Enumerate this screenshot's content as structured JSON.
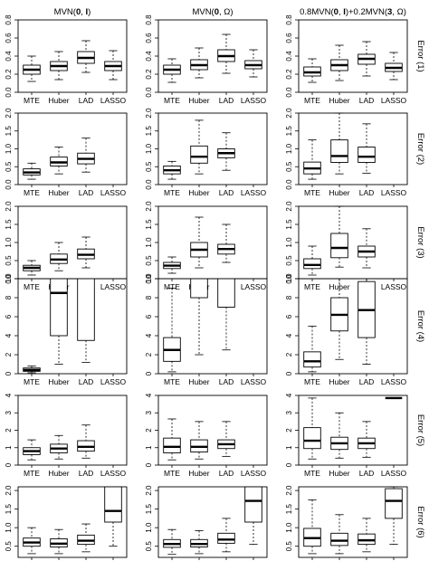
{
  "categories": [
    "MTE",
    "Huber",
    "LAD",
    "LASSO"
  ],
  "column_titles": [
    {
      "parts": [
        {
          "t": "MVN("
        },
        {
          "t": "0",
          "b": true
        },
        {
          "t": ", "
        },
        {
          "t": "I",
          "b": true
        },
        {
          "t": ")"
        }
      ]
    },
    {
      "parts": [
        {
          "t": "MVN("
        },
        {
          "t": "0",
          "b": true
        },
        {
          "t": ", Ω)"
        }
      ]
    },
    {
      "parts": [
        {
          "t": "0.8MVN("
        },
        {
          "t": "0",
          "b": true
        },
        {
          "t": ", "
        },
        {
          "t": "I",
          "b": true
        },
        {
          "t": ")+0.2MVN("
        },
        {
          "t": "3",
          "b": true
        },
        {
          "t": ", Ω)"
        }
      ]
    }
  ],
  "row_labels": [
    "Error (1)",
    "Error (2)",
    "Error (3)",
    "Error (4)",
    "Error (5)",
    "Error (6)"
  ],
  "chart_data": {
    "type": "boxplot",
    "rows": [
      {
        "label": "Error (1)",
        "ylim": [
          0,
          0.8
        ],
        "yticks": [
          "0.0",
          "0.2",
          "0.4",
          "0.6",
          "0.8"
        ],
        "ytick_values": [
          0,
          0.2,
          0.4,
          0.6,
          0.8
        ],
        "panels": [
          {
            "boxes": [
              {
                "min": 0.12,
                "q1": 0.2,
                "median": 0.25,
                "q3": 0.3,
                "max": 0.4
              },
              {
                "min": 0.14,
                "q1": 0.24,
                "median": 0.29,
                "q3": 0.34,
                "max": 0.45
              },
              {
                "min": 0.22,
                "q1": 0.32,
                "median": 0.38,
                "q3": 0.45,
                "max": 0.57
              },
              {
                "min": 0.14,
                "q1": 0.24,
                "median": 0.29,
                "q3": 0.34,
                "max": 0.46
              }
            ]
          },
          {
            "boxes": [
              {
                "min": 0.11,
                "q1": 0.2,
                "median": 0.25,
                "q3": 0.3,
                "max": 0.37
              },
              {
                "min": 0.16,
                "q1": 0.25,
                "median": 0.3,
                "q3": 0.36,
                "max": 0.49
              },
              {
                "min": 0.21,
                "q1": 0.34,
                "median": 0.4,
                "q3": 0.47,
                "max": 0.64
              },
              {
                "min": 0.17,
                "q1": 0.26,
                "median": 0.3,
                "q3": 0.35,
                "max": 0.47
              }
            ]
          },
          {
            "boxes": [
              {
                "min": 0.11,
                "q1": 0.18,
                "median": 0.22,
                "q3": 0.28,
                "max": 0.37
              },
              {
                "min": 0.13,
                "q1": 0.24,
                "median": 0.3,
                "q3": 0.36,
                "max": 0.52
              },
              {
                "min": 0.18,
                "q1": 0.31,
                "median": 0.37,
                "q3": 0.42,
                "max": 0.56
              },
              {
                "min": 0.14,
                "q1": 0.23,
                "median": 0.27,
                "q3": 0.32,
                "max": 0.44
              }
            ]
          }
        ]
      },
      {
        "label": "Error (2)",
        "ylim": [
          0,
          2.0
        ],
        "yticks": [
          "0.0",
          "0.5",
          "1.0",
          "1.5",
          "2.0"
        ],
        "ytick_values": [
          0,
          0.5,
          1.0,
          1.5,
          2.0
        ],
        "panels": [
          {
            "boxes": [
              {
                "min": 0.15,
                "q1": 0.27,
                "median": 0.34,
                "q3": 0.44,
                "max": 0.6
              },
              {
                "min": 0.3,
                "q1": 0.52,
                "median": 0.62,
                "q3": 0.77,
                "max": 1.05
              },
              {
                "min": 0.35,
                "q1": 0.58,
                "median": 0.72,
                "q3": 0.88,
                "max": 1.3
              },
              null
            ]
          },
          {
            "boxes": [
              {
                "min": 0.15,
                "q1": 0.3,
                "median": 0.4,
                "q3": 0.52,
                "max": 0.65
              },
              {
                "min": 0.3,
                "q1": 0.6,
                "median": 0.78,
                "q3": 1.08,
                "max": 1.8
              },
              {
                "min": 0.4,
                "q1": 0.75,
                "median": 0.88,
                "q3": 1.0,
                "max": 1.45
              },
              null
            ]
          },
          {
            "boxes": [
              {
                "min": 0.15,
                "q1": 0.3,
                "median": 0.45,
                "q3": 0.63,
                "max": 1.25
              },
              {
                "min": 0.3,
                "q1": 0.62,
                "median": 0.8,
                "q3": 1.25,
                "max": 2.0
              },
              {
                "min": 0.32,
                "q1": 0.62,
                "median": 0.78,
                "q3": 1.05,
                "max": 1.7
              },
              null
            ]
          }
        ]
      },
      {
        "label": "Error (3)",
        "ylim": [
          0,
          2.0
        ],
        "yticks": [
          "0.0",
          "0.5",
          "1.0",
          "1.5",
          "2.0"
        ],
        "ytick_values": [
          0,
          0.5,
          1.0,
          1.5,
          2.0
        ],
        "panels": [
          {
            "boxes": [
              {
                "min": 0.1,
                "q1": 0.22,
                "median": 0.3,
                "q3": 0.37,
                "max": 0.5
              },
              {
                "min": 0.22,
                "q1": 0.42,
                "median": 0.53,
                "q3": 0.68,
                "max": 1.0
              },
              {
                "min": 0.3,
                "q1": 0.55,
                "median": 0.66,
                "q3": 0.82,
                "max": 1.15
              },
              null
            ]
          },
          {
            "boxes": [
              {
                "min": 0.15,
                "q1": 0.28,
                "median": 0.36,
                "q3": 0.45,
                "max": 0.6
              },
              {
                "min": 0.3,
                "q1": 0.6,
                "median": 0.8,
                "q3": 1.0,
                "max": 1.7
              },
              {
                "min": 0.45,
                "q1": 0.68,
                "median": 0.82,
                "q3": 0.95,
                "max": 1.5
              },
              null
            ]
          },
          {
            "boxes": [
              {
                "min": 0.1,
                "q1": 0.28,
                "median": 0.38,
                "q3": 0.55,
                "max": 0.9
              },
              {
                "min": 0.32,
                "q1": 0.58,
                "median": 0.85,
                "q3": 1.25,
                "max": 2.0
              },
              {
                "min": 0.3,
                "q1": 0.6,
                "median": 0.75,
                "q3": 0.9,
                "max": 1.38
              },
              null
            ]
          }
        ]
      },
      {
        "label": "Error (4)",
        "ylim": [
          0,
          10
        ],
        "yticks": [
          "0",
          "2",
          "4",
          "6",
          "8",
          "10"
        ],
        "ytick_values": [
          0,
          2,
          4,
          6,
          8,
          10
        ],
        "panels": [
          {
            "boxes": [
              {
                "min": 0.1,
                "q1": 0.25,
                "median": 0.4,
                "q3": 0.6,
                "max": 0.8
              },
              {
                "min": 1.0,
                "q1": 4.0,
                "median": 8.5,
                "q3": 10.5,
                "max": 10.5
              },
              {
                "min": 1.2,
                "q1": 3.5,
                "median": 10.5,
                "q3": 10.5,
                "max": 10.5
              },
              null
            ]
          },
          {
            "boxes": [
              {
                "min": 0.2,
                "q1": 1.3,
                "median": 2.5,
                "q3": 3.8,
                "max": 9.0
              },
              {
                "min": 2.0,
                "q1": 8.0,
                "median": 10.5,
                "q3": 10.5,
                "max": 10.5
              },
              {
                "min": 2.5,
                "q1": 7.0,
                "median": 10.5,
                "q3": 10.5,
                "max": 10.5
              },
              null
            ]
          },
          {
            "boxes": [
              {
                "min": 0.2,
                "q1": 0.7,
                "median": 1.3,
                "q3": 2.3,
                "max": 5.0
              },
              {
                "min": 1.5,
                "q1": 4.5,
                "median": 6.2,
                "q3": 8.0,
                "max": 10.0
              },
              {
                "min": 1.0,
                "q1": 3.8,
                "median": 6.7,
                "q3": 9.7,
                "max": 10.0
              },
              null
            ]
          }
        ]
      },
      {
        "label": "Error (5)",
        "ylim": [
          0,
          4
        ],
        "yticks": [
          "0",
          "1",
          "2",
          "3",
          "4"
        ],
        "ytick_values": [
          0,
          1,
          2,
          3,
          4
        ],
        "panels": [
          {
            "boxes": [
              {
                "min": 0.3,
                "q1": 0.6,
                "median": 0.8,
                "q3": 1.0,
                "max": 1.45
              },
              {
                "min": 0.35,
                "q1": 0.7,
                "median": 0.95,
                "q3": 1.2,
                "max": 1.7
              },
              {
                "min": 0.4,
                "q1": 0.8,
                "median": 1.05,
                "q3": 1.4,
                "max": 2.3
              },
              null
            ]
          },
          {
            "boxes": [
              {
                "min": 0.3,
                "q1": 0.7,
                "median": 1.05,
                "q3": 1.55,
                "max": 2.65
              },
              {
                "min": 0.35,
                "q1": 0.75,
                "median": 1.05,
                "q3": 1.45,
                "max": 2.5
              },
              {
                "min": 0.5,
                "q1": 0.95,
                "median": 1.2,
                "q3": 1.45,
                "max": 2.5
              },
              null
            ]
          },
          {
            "boxes": [
              {
                "min": 0.35,
                "q1": 0.95,
                "median": 1.4,
                "q3": 2.15,
                "max": 3.85
              },
              {
                "min": 0.4,
                "q1": 0.9,
                "median": 1.25,
                "q3": 1.6,
                "max": 3.0
              },
              {
                "min": 0.45,
                "q1": 0.95,
                "median": 1.25,
                "q3": 1.55,
                "max": 2.5
              },
              {
                "min": 3.85,
                "q1": 3.85,
                "median": 3.85,
                "q3": 3.85,
                "max": 3.85
              }
            ]
          }
        ]
      },
      {
        "label": "Error (6)",
        "ylim": [
          0.2,
          2.1
        ],
        "yticks": [
          "0.5",
          "1.0",
          "1.5",
          "2.0"
        ],
        "ytick_values": [
          0.5,
          1.0,
          1.5,
          2.0
        ],
        "panels": [
          {
            "boxes": [
              {
                "min": 0.3,
                "q1": 0.5,
                "median": 0.6,
                "q3": 0.72,
                "max": 1.0
              },
              {
                "min": 0.3,
                "q1": 0.48,
                "median": 0.57,
                "q3": 0.7,
                "max": 0.95
              },
              {
                "min": 0.35,
                "q1": 0.55,
                "median": 0.65,
                "q3": 0.8,
                "max": 1.1
              },
              {
                "min": 0.5,
                "q1": 1.15,
                "median": 1.45,
                "q3": 2.1,
                "max": 2.1
              }
            ]
          },
          {
            "boxes": [
              {
                "min": 0.28,
                "q1": 0.47,
                "median": 0.56,
                "q3": 0.68,
                "max": 0.95
              },
              {
                "min": 0.3,
                "q1": 0.48,
                "median": 0.56,
                "q3": 0.68,
                "max": 0.92
              },
              {
                "min": 0.35,
                "q1": 0.58,
                "median": 0.68,
                "q3": 0.85,
                "max": 1.25
              },
              {
                "min": 0.55,
                "q1": 1.15,
                "median": 1.72,
                "q3": 2.1,
                "max": 2.1
              }
            ]
          },
          {
            "boxes": [
              {
                "min": 0.3,
                "q1": 0.5,
                "median": 0.72,
                "q3": 0.98,
                "max": 1.75
              },
              {
                "min": 0.3,
                "q1": 0.52,
                "median": 0.65,
                "q3": 0.85,
                "max": 1.35
              },
              {
                "min": 0.35,
                "q1": 0.55,
                "median": 0.66,
                "q3": 0.83,
                "max": 1.25
              },
              {
                "min": 0.55,
                "q1": 1.25,
                "median": 1.72,
                "q3": 2.05,
                "max": 2.1
              }
            ]
          }
        ]
      }
    ]
  }
}
